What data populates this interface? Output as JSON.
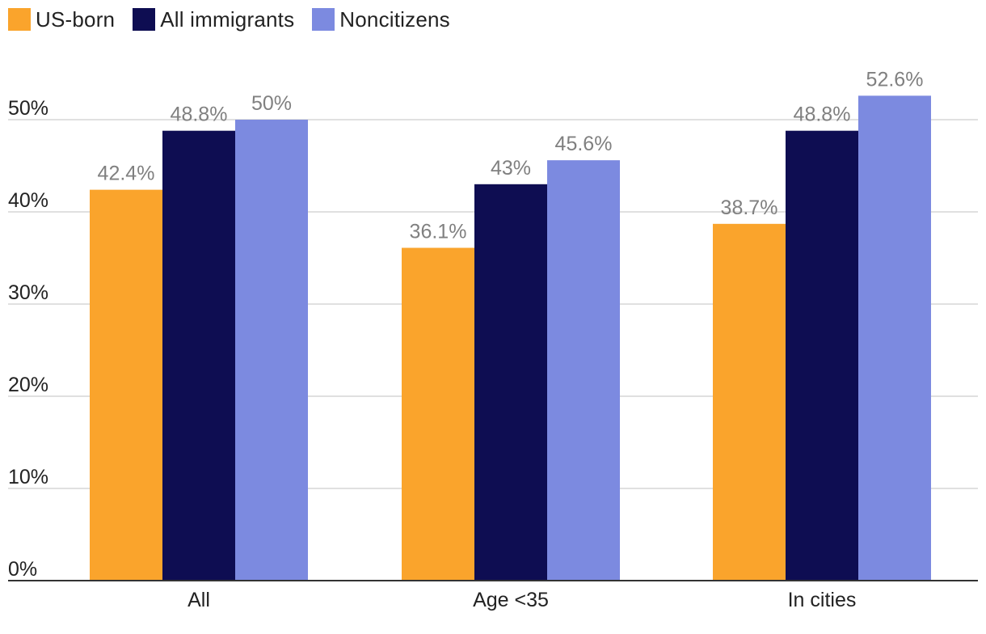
{
  "colors": {
    "us_born": "#FAA42C",
    "all_immigrants": "#0E0D52",
    "noncitizens": "#7C8AE0",
    "grid": "#D6D6D6",
    "axis": "#333333"
  },
  "legend": [
    {
      "key": "us_born",
      "label": "US-born"
    },
    {
      "key": "all_immigrants",
      "label": "All immigrants"
    },
    {
      "key": "noncitizens",
      "label": "Noncitizens"
    }
  ],
  "chart_data": {
    "type": "bar",
    "title": "",
    "xlabel": "",
    "ylabel": "",
    "categories": [
      "All",
      "Age <35",
      "In cities"
    ],
    "series": [
      {
        "name": "US-born",
        "key": "us_born",
        "values": [
          42.4,
          36.1,
          38.7
        ],
        "labels": [
          "42.4%",
          "36.1%",
          "38.7%"
        ]
      },
      {
        "name": "All immigrants",
        "key": "all_immigrants",
        "values": [
          48.8,
          43,
          48.8
        ],
        "labels": [
          "48.8%",
          "43%",
          "48.8%"
        ]
      },
      {
        "name": "Noncitizens",
        "key": "noncitizens",
        "values": [
          50,
          45.6,
          52.6
        ],
        "labels": [
          "50%",
          "45.6%",
          "52.6%"
        ]
      }
    ],
    "ylim": [
      0,
      55
    ],
    "yticks": [
      0,
      10,
      20,
      30,
      40,
      50
    ],
    "ytick_labels": [
      "0%",
      "10%",
      "20%",
      "30%",
      "40%",
      "50%"
    ],
    "grid": true,
    "legend_position": "top-left"
  }
}
